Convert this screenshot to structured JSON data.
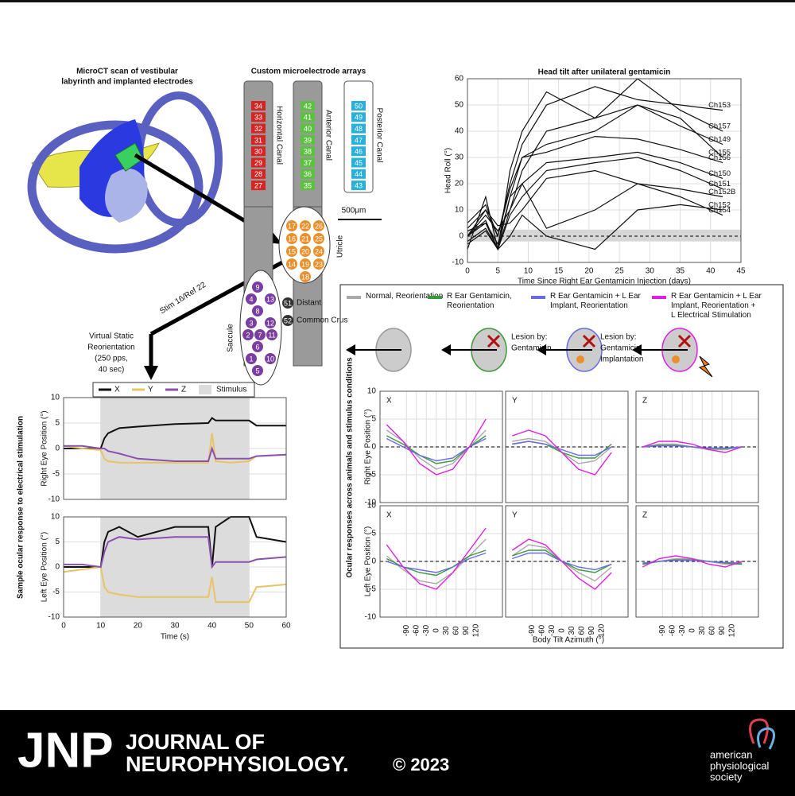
{
  "microct": {
    "title_lines": [
      "MicroCT scan of vestibular",
      "labyrinth and implanted electrodes"
    ]
  },
  "arrays": {
    "title": "Custom microelectrode arrays",
    "canals": [
      {
        "name": "Horizontal Canal",
        "color": "#d42424",
        "electrodes": [
          34,
          33,
          32,
          31,
          30,
          29,
          28,
          27
        ]
      },
      {
        "name": "Anterior Canal",
        "color": "#5cc040",
        "electrodes": [
          42,
          41,
          40,
          39,
          38,
          37,
          36,
          35
        ]
      },
      {
        "name": "Posterior Canal",
        "color": "#2ab0d8",
        "electrodes": [
          50,
          49,
          48,
          47,
          46,
          45,
          44,
          43
        ]
      }
    ],
    "scale": "500μm",
    "utricle": {
      "name": "Utricle",
      "color": "#e8902c",
      "rows": [
        [
          17,
          22,
          26
        ],
        [
          16,
          21,
          25
        ],
        [
          15,
          20,
          24
        ],
        [
          14,
          19,
          23
        ],
        [
          18
        ]
      ]
    },
    "saccule": {
      "name": "Saccule",
      "color": "#7a3ea0",
      "rows": [
        [
          9
        ],
        [
          4,
          13
        ],
        [
          8
        ],
        [
          3,
          12
        ],
        [
          2,
          7,
          11
        ],
        [
          6
        ],
        [
          1,
          10
        ],
        [
          5
        ]
      ]
    },
    "legend": [
      {
        "number": 51,
        "label": "Distant"
      },
      {
        "number": 52,
        "label": "Common Crus"
      }
    ]
  },
  "stim_label": "Stim 16/Ref 22",
  "virtual_lines": [
    "Virtual Static",
    "Reorientation",
    "(250 pps,",
    "40 sec)"
  ],
  "sample_legend": {
    "group_label": "Sample ocular response to electrical stimulation",
    "series": [
      {
        "name": "X",
        "color": "#111111"
      },
      {
        "name": "Y",
        "color": "#e8c466"
      },
      {
        "name": "Z",
        "color": "#8a52b0"
      }
    ],
    "stimulus": "Stimulus",
    "stimulus_color": "#dcdcdc",
    "xlabel": "Time (s)"
  },
  "ocular_legend": {
    "group_label": "Ocular responses across animals and stimulus conditions",
    "xlabel": "Body Tilt Azimuth (°)",
    "row_labels": [
      "Right Eye Position (°)",
      "Left Eye Position (°)"
    ],
    "conditions": [
      {
        "name": "Normal, Reorientation",
        "color": "#aaaaaa"
      },
      {
        "name": "R Ear Gentamicin, Reorientation",
        "color": "#3a9a3a"
      },
      {
        "name": "R Ear Gentamicin + L Ear Implant, Reorientation",
        "color": "#6a6ae6"
      },
      {
        "name": "R Ear Gentamicin + L Ear Implant, Reorientation + L Electrical Stimulation",
        "color": "#e020e0"
      }
    ],
    "notes": [
      [
        "Lesion by:",
        "Gentamicin"
      ],
      [
        "Lesion by:",
        "Gentamicin",
        "Implantation"
      ]
    ]
  },
  "chart_data": [
    {
      "type": "line",
      "title": "Head tilt after unilateral gentamicin",
      "ylabel": "Head Roll (°)",
      "xlabel": "Time Since Right Ear Gentamicin Injection (days)",
      "xlim": [
        0,
        45
      ],
      "ylim": [
        -10,
        60
      ],
      "xticks": [
        0,
        5,
        10,
        15,
        20,
        25,
        30,
        35,
        40,
        45
      ],
      "yticks": [
        -10,
        0,
        10,
        20,
        30,
        40,
        50,
        60
      ],
      "grid": true,
      "band": [
        -2,
        2.5
      ],
      "color": "#111111",
      "x": [
        0,
        3,
        5,
        7,
        9,
        13,
        21,
        28,
        35,
        42
      ],
      "series": [
        {
          "name": "Ch153",
          "values": [
            0,
            10,
            0,
            20,
            35,
            50,
            57,
            52,
            50,
            48
          ]
        },
        {
          "name": "Ch157",
          "values": [
            -5,
            15,
            -5,
            25,
            40,
            55,
            45,
            60,
            48,
            40
          ]
        },
        {
          "name": "Ch155",
          "values": [
            2,
            5,
            -3,
            15,
            30,
            35,
            40,
            50,
            45,
            30
          ]
        },
        {
          "name": "Ch149",
          "values": [
            0,
            8,
            2,
            10,
            25,
            40,
            45,
            50,
            42,
            35
          ]
        },
        {
          "name": "Ch156",
          "values": [
            5,
            12,
            0,
            18,
            30,
            32,
            38,
            37,
            33,
            28
          ]
        },
        {
          "name": "Ch150",
          "values": [
            -2,
            3,
            -5,
            10,
            20,
            28,
            30,
            32,
            28,
            22
          ]
        },
        {
          "name": "Ch151",
          "values": [
            0,
            6,
            -5,
            8,
            15,
            25,
            28,
            30,
            25,
            18
          ]
        },
        {
          "name": "Ch152B",
          "values": [
            3,
            10,
            4,
            5,
            10,
            22,
            25,
            20,
            18,
            15
          ]
        },
        {
          "name": "Ch154",
          "values": [
            -3,
            2,
            -5,
            15,
            20,
            3,
            10,
            20,
            15,
            8
          ]
        },
        {
          "name": "Ch152",
          "values": [
            0,
            5,
            -5,
            0,
            8,
            0,
            -5,
            10,
            12,
            10
          ]
        }
      ]
    },
    {
      "type": "line",
      "ylabel": "Right Eye Position (°)",
      "xlim": [
        0,
        60
      ],
      "ylim": [
        -10,
        10
      ],
      "xticks": [
        0,
        10,
        20,
        30,
        40,
        50,
        60
      ],
      "yticks": [
        -10,
        -5,
        0,
        5,
        10
      ],
      "grid": true,
      "stim": [
        10,
        50
      ],
      "x": [
        0,
        5,
        10,
        11,
        12,
        15,
        20,
        30,
        39,
        40,
        41,
        45,
        50,
        52,
        60
      ],
      "series": [
        {
          "values": [
            0,
            0,
            0,
            2,
            3,
            4,
            4.3,
            4.8,
            5,
            6,
            5.5,
            5.5,
            5.5,
            4.5,
            4.5
          ]
        },
        {
          "values": [
            0.5,
            0,
            -0.3,
            -2,
            -2.5,
            -2.8,
            -2.8,
            -2.8,
            -2.8,
            3,
            -2.5,
            -2.8,
            -2.5,
            -1.5,
            -1.2
          ]
        },
        {
          "values": [
            0.5,
            0.5,
            0,
            0,
            -0.5,
            -1,
            -2,
            -2.5,
            -2.5,
            0,
            -2,
            -2,
            -2,
            -1.5,
            -1.2
          ]
        }
      ]
    },
    {
      "type": "line",
      "ylabel": "Left Eye Position (°)",
      "xlim": [
        0,
        60
      ],
      "ylim": [
        -10,
        10
      ],
      "xticks": [
        0,
        10,
        20,
        30,
        40,
        50,
        60
      ],
      "yticks": [
        -10,
        -5,
        0,
        5,
        10
      ],
      "grid": true,
      "stim": [
        10,
        50
      ],
      "x": [
        0,
        5,
        10,
        11,
        12,
        15,
        20,
        30,
        39,
        40,
        41,
        45,
        50,
        52,
        60
      ],
      "series": [
        {
          "values": [
            0,
            0,
            0,
            5,
            7,
            8,
            6,
            8,
            8,
            0,
            8,
            10,
            10,
            6,
            5
          ]
        },
        {
          "values": [
            -1,
            -0.5,
            0,
            -4,
            -5,
            -5.5,
            -6,
            -6,
            -6,
            -2,
            -7,
            -7,
            -7,
            -4,
            -3.5
          ]
        },
        {
          "values": [
            0.5,
            0.5,
            0,
            3,
            5,
            6,
            5.5,
            6,
            6,
            0,
            1,
            1,
            1,
            1.5,
            2
          ]
        }
      ]
    },
    {
      "type": "line",
      "panel": "X",
      "xlim": [
        -170,
        200
      ],
      "ylim": [
        -10,
        10
      ],
      "xticks": [
        -90,
        -60,
        -30,
        0,
        30,
        60,
        90,
        120
      ],
      "yticks": [
        -10,
        -5,
        0,
        5,
        10
      ],
      "grid": true,
      "x": [
        -150,
        -100,
        -50,
        0,
        50,
        100,
        150
      ],
      "series": [
        {
          "values": [
            3,
            1,
            -2,
            -4,
            -3,
            0,
            3
          ]
        },
        {
          "values": [
            2,
            0.5,
            -1.5,
            -3,
            -2.5,
            0,
            2
          ]
        },
        {
          "values": [
            1.5,
            0,
            -1.5,
            -2.5,
            -2,
            0,
            1.5
          ]
        },
        {
          "values": [
            4,
            1,
            -3,
            -5,
            -4,
            0,
            5
          ]
        }
      ]
    },
    {
      "type": "line",
      "panel": "Y",
      "xlim": [
        -170,
        200
      ],
      "ylim": [
        -10,
        10
      ],
      "xticks": [
        -90,
        -60,
        -30,
        0,
        30,
        60,
        90,
        120
      ],
      "yticks": [
        -10,
        -5,
        0,
        5,
        10
      ],
      "grid": true,
      "x": [
        -150,
        -100,
        -50,
        0,
        50,
        100,
        150
      ],
      "series": [
        {
          "values": [
            1,
            1.5,
            1,
            -1,
            -3,
            -2.5,
            0
          ]
        },
        {
          "values": [
            0.5,
            1,
            0.5,
            -1,
            -2,
            -2,
            0.5
          ]
        },
        {
          "values": [
            0.5,
            1,
            0.5,
            -0.5,
            -1.5,
            -1.5,
            0
          ]
        },
        {
          "values": [
            2,
            3,
            2,
            -1,
            -4,
            -5,
            -1
          ]
        }
      ]
    },
    {
      "type": "line",
      "panel": "Z",
      "xlim": [
        -170,
        200
      ],
      "ylim": [
        -10,
        10
      ],
      "xticks": [
        -90,
        -60,
        -30,
        0,
        30,
        60,
        90,
        120
      ],
      "yticks": [
        -10,
        -5,
        0,
        5,
        10
      ],
      "grid": true,
      "x": [
        -150,
        -100,
        -50,
        0,
        50,
        100,
        150
      ],
      "series": [
        {
          "values": [
            0,
            0.5,
            0.5,
            0,
            -0.5,
            -0.5,
            0
          ]
        },
        {
          "values": [
            0,
            0.3,
            0.3,
            0,
            -0.3,
            -0.3,
            0
          ]
        },
        {
          "values": [
            0,
            0.2,
            0.2,
            0,
            -0.2,
            -0.2,
            0
          ]
        },
        {
          "values": [
            0,
            1,
            1,
            0.5,
            -0.5,
            -1,
            0
          ]
        }
      ]
    },
    {
      "type": "line",
      "panel": "X",
      "xlim": [
        -170,
        200
      ],
      "ylim": [
        -10,
        10
      ],
      "xticks": [
        -90,
        -60,
        -30,
        0,
        30,
        60,
        90,
        120
      ],
      "yticks": [
        -10,
        -5,
        0,
        5,
        10
      ],
      "grid": true,
      "x": [
        -150,
        -100,
        -50,
        0,
        50,
        100,
        150
      ],
      "series": [
        {
          "values": [
            1,
            -1.5,
            -3.5,
            -4,
            -2,
            1,
            4
          ]
        },
        {
          "values": [
            0.5,
            -1,
            -2,
            -2.5,
            -1,
            1,
            2
          ]
        },
        {
          "values": [
            0,
            -1,
            -1.5,
            -2,
            -1,
            0.5,
            1.5
          ]
        },
        {
          "values": [
            3,
            -1,
            -4,
            -5,
            -2,
            2,
            6
          ]
        }
      ]
    },
    {
      "type": "line",
      "panel": "Y",
      "xlim": [
        -170,
        200
      ],
      "ylim": [
        -10,
        10
      ],
      "xticks": [
        -90,
        -60,
        -30,
        0,
        30,
        60,
        90,
        120
      ],
      "yticks": [
        -10,
        -5,
        0,
        5,
        10
      ],
      "grid": true,
      "x": [
        -150,
        -100,
        -50,
        0,
        50,
        100,
        150
      ],
      "series": [
        {
          "values": [
            1,
            3,
            2.5,
            0,
            -2,
            -3.5,
            -1
          ]
        },
        {
          "values": [
            1,
            2,
            2,
            0,
            -1.5,
            -2,
            -0.5
          ]
        },
        {
          "values": [
            0.5,
            1.5,
            1.5,
            0,
            -1,
            -1.5,
            -0.5
          ]
        },
        {
          "values": [
            2,
            4,
            3,
            0,
            -3,
            -5,
            -2
          ]
        }
      ]
    },
    {
      "type": "line",
      "panel": "Z",
      "xlim": [
        -170,
        200
      ],
      "ylim": [
        -10,
        10
      ],
      "xticks": [
        -90,
        -60,
        -30,
        0,
        30,
        60,
        90,
        120
      ],
      "yticks": [
        -10,
        -5,
        0,
        5,
        10
      ],
      "grid": true,
      "x": [
        -150,
        -100,
        -50,
        0,
        50,
        100,
        150
      ],
      "series": [
        {
          "values": [
            -0.5,
            0,
            0.5,
            0.5,
            0,
            -0.5,
            -0.5
          ]
        },
        {
          "values": [
            -0.5,
            0,
            0.3,
            0.3,
            0,
            -0.3,
            -0.5
          ]
        },
        {
          "values": [
            -0.3,
            0,
            0.2,
            0.2,
            0,
            -0.2,
            -0.3
          ]
        },
        {
          "values": [
            -1,
            0.5,
            1,
            0.5,
            -0.5,
            -1,
            0
          ]
        }
      ]
    }
  ],
  "footer": {
    "logo": "JNP",
    "journal_lines": [
      "JOURNAL OF",
      "NEUROPHYSIOLOGY."
    ],
    "year": "© 2023",
    "society_lines": [
      "american",
      "physiological",
      "society"
    ]
  }
}
